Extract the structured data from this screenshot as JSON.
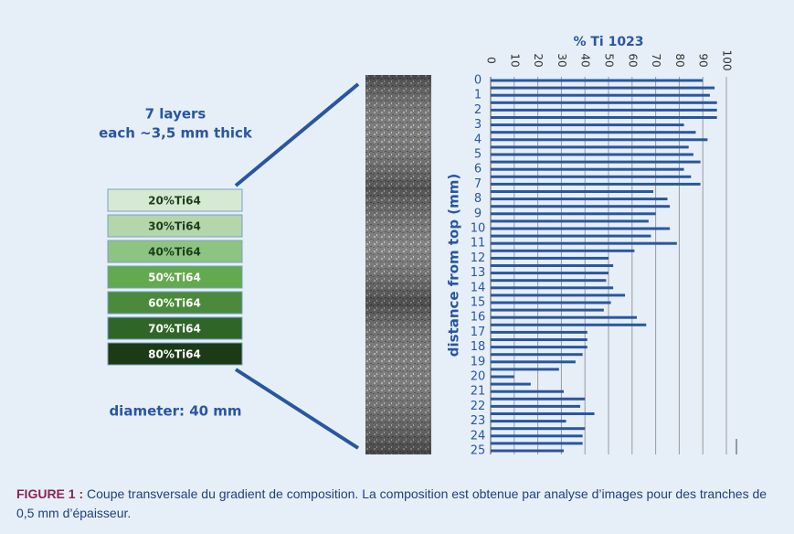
{
  "heading": [
    "7 layers",
    "each ~3,5 mm thick"
  ],
  "layers": [
    "20%Ti64",
    "30%Ti64",
    "40%Ti64",
    "50%Ti64",
    "60%Ti64",
    "70%Ti64",
    "80%Ti64"
  ],
  "diameter": "diameter: 40 mm",
  "chart_data": {
    "type": "bar",
    "orientation": "horizontal",
    "title": "% Ti 1023",
    "y_label": "distance from top (mm)",
    "color": "#2a56a0",
    "y": [
      0,
      0.5,
      1,
      1.5,
      2,
      2.5,
      3,
      3.5,
      4,
      4.5,
      5,
      5.5,
      6,
      6.5,
      7,
      7.5,
      8,
      8.5,
      9,
      9.5,
      10,
      10.5,
      11,
      11.5,
      12,
      12.5,
      13,
      13.5,
      14,
      14.5,
      15,
      15.5,
      16,
      16.5,
      17,
      17.5,
      18,
      18.5,
      19,
      19.5,
      20,
      20.5,
      21,
      21.5,
      22,
      22.5,
      23,
      23.5,
      24,
      24.5,
      25
    ],
    "values": [
      90,
      95,
      93,
      96,
      96,
      96,
      82,
      87,
      92,
      84,
      86,
      89,
      82,
      85,
      89,
      69,
      75,
      76,
      70,
      67,
      76,
      68,
      79,
      61,
      50,
      52,
      50,
      49,
      52,
      57,
      51,
      48,
      62,
      66,
      41,
      41,
      41,
      39,
      36,
      29,
      10,
      17,
      31,
      40,
      38,
      44,
      32,
      40,
      39,
      39,
      31
    ],
    "xlim": [
      0,
      100
    ],
    "xticks": [
      0,
      10,
      20,
      30,
      40,
      50,
      60,
      70,
      80,
      90,
      100
    ],
    "ylim": [
      0,
      25
    ],
    "yticks": [
      0,
      1,
      2,
      3,
      4,
      5,
      6,
      7,
      8,
      9,
      10,
      11,
      12,
      13,
      14,
      15,
      16,
      17,
      18,
      19,
      20,
      21,
      22,
      23,
      24,
      25
    ],
    "grid": true
  },
  "caption": {
    "label": "FIGURE 1 :",
    "text": "Coupe transversale du gradient de composition. La composition est obtenue par analyse d’images pour des tranches de 0,5 mm d’épaisseur."
  }
}
